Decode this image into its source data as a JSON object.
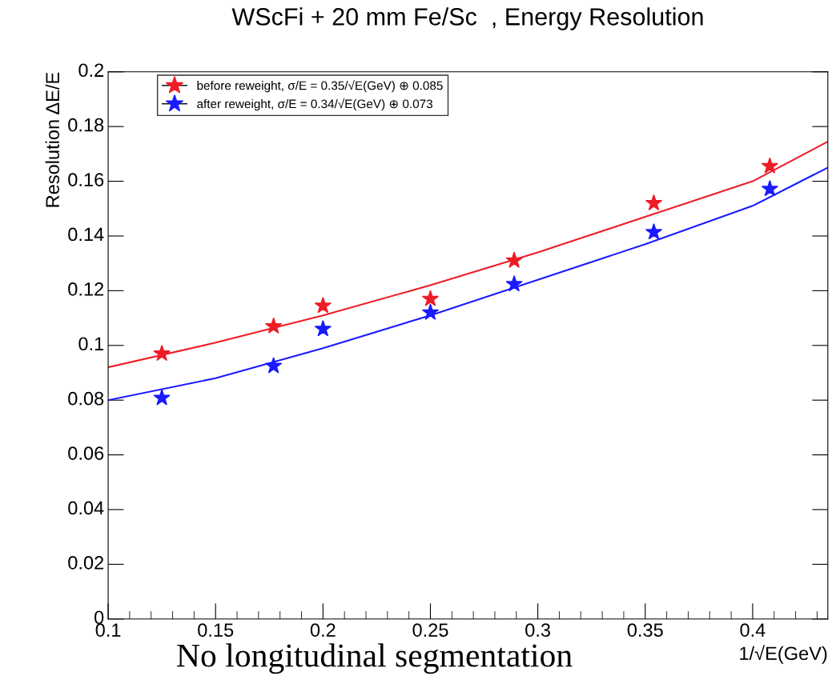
{
  "chart_data": {
    "type": "scatter",
    "title": "WScFi + 20 mm Fe/Sc  , Energy Resolution",
    "xlabel": "1/√E(GeV)",
    "ylabel": "Resolution ΔE/E",
    "xlim": [
      0.1,
      0.435
    ],
    "xticks": [
      0.1,
      0.15,
      0.2,
      0.25,
      0.3,
      0.35,
      0.4
    ],
    "ylim": [
      0,
      0.2
    ],
    "yticks": [
      0,
      0.02,
      0.04,
      0.06,
      0.08,
      0.1,
      0.12,
      0.14,
      0.16,
      0.18,
      0.2
    ],
    "grid": false,
    "legend": "top left",
    "annotations": [
      "No longitudinal segmentation"
    ],
    "series": [
      {
        "name": "before reweight, σ/E = 0.35/√E(GeV) ⊕ 0.085",
        "marker": "star",
        "color": "#ee1c25",
        "x": [
          0.125,
          0.177,
          0.2,
          0.25,
          0.289,
          0.354,
          0.408
        ],
        "values": [
          0.097,
          0.107,
          0.1145,
          0.117,
          0.131,
          0.152,
          0.1655
        ]
      },
      {
        "name": "after reweight, σ/E = 0.34/√E(GeV) ⊕ 0.073",
        "marker": "star",
        "color": "#1a1aff",
        "x": [
          0.125,
          0.177,
          0.2,
          0.25,
          0.289,
          0.354,
          0.408
        ],
        "values": [
          0.0808,
          0.0925,
          0.106,
          0.112,
          0.1224,
          0.1414,
          0.1572
        ]
      },
      {
        "type": "line",
        "color": "#ee1c25",
        "x": [
          0.1,
          0.15,
          0.2,
          0.25,
          0.3,
          0.35,
          0.4,
          0.435
        ],
        "values": [
          0.092,
          0.101,
          0.111,
          0.122,
          0.134,
          0.147,
          0.16,
          0.1745
        ]
      },
      {
        "type": "line",
        "color": "#1a1aff",
        "x": [
          0.1,
          0.15,
          0.2,
          0.25,
          0.3,
          0.35,
          0.4,
          0.435
        ],
        "values": [
          0.08,
          0.088,
          0.099,
          0.111,
          0.124,
          0.137,
          0.151,
          0.165
        ]
      }
    ]
  }
}
